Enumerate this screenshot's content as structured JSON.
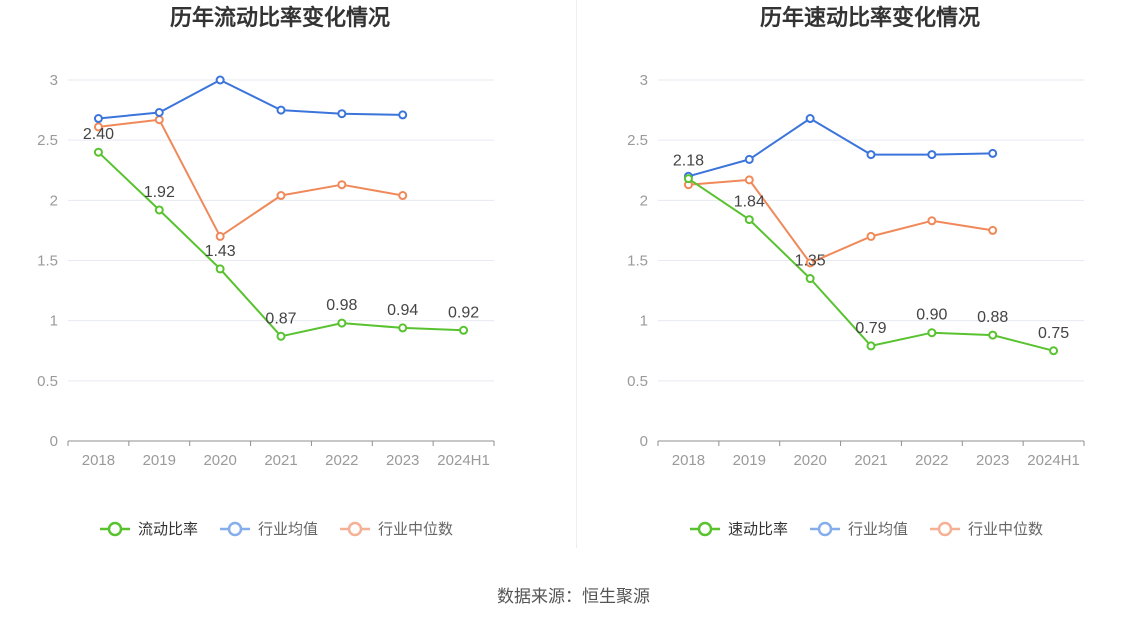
{
  "chart_data": [
    {
      "type": "line",
      "title": "历年流动比率变化情况",
      "categories": [
        "2018",
        "2019",
        "2020",
        "2021",
        "2022",
        "2023",
        "2024H1"
      ],
      "ylim": [
        0,
        3
      ],
      "yticks": [
        0,
        0.5,
        1,
        1.5,
        2,
        2.5,
        3
      ],
      "grid": true,
      "legend": "bottom",
      "series": [
        {
          "name": "流动比率",
          "color": "#58c22f",
          "legend_color": "#58c22f",
          "values": [
            2.4,
            1.92,
            1.43,
            0.87,
            0.98,
            0.94,
            0.92
          ],
          "labels": [
            "2.40",
            "1.92",
            "1.43",
            "0.87",
            "0.98",
            "0.94",
            "0.92"
          ]
        },
        {
          "name": "行业均值",
          "color": "#3b74db",
          "legend_color": "#86aeec",
          "values": [
            2.68,
            2.73,
            3.0,
            2.75,
            2.72,
            2.71,
            null
          ]
        },
        {
          "name": "行业中位数",
          "color": "#f0895a",
          "legend_color": "#f4b195",
          "values": [
            2.61,
            2.67,
            1.7,
            2.04,
            2.13,
            2.04,
            null
          ]
        }
      ]
    },
    {
      "type": "line",
      "title": "历年速动比率变化情况",
      "categories": [
        "2018",
        "2019",
        "2020",
        "2021",
        "2022",
        "2023",
        "2024H1"
      ],
      "ylim": [
        0,
        3
      ],
      "yticks": [
        0,
        0.5,
        1,
        1.5,
        2,
        2.5,
        3
      ],
      "grid": true,
      "legend": "bottom",
      "series": [
        {
          "name": "速动比率",
          "color": "#58c22f",
          "legend_color": "#58c22f",
          "values": [
            2.18,
            1.84,
            1.35,
            0.79,
            0.9,
            0.88,
            0.75
          ],
          "labels": [
            "2.18",
            "1.84",
            "1.35",
            "0.79",
            "0.90",
            "0.88",
            "0.75"
          ]
        },
        {
          "name": "行业均值",
          "color": "#3b74db",
          "legend_color": "#86aeec",
          "values": [
            2.2,
            2.34,
            2.68,
            2.38,
            2.38,
            2.39,
            null
          ]
        },
        {
          "name": "行业中位数",
          "color": "#f0895a",
          "legend_color": "#f4b195",
          "values": [
            2.13,
            2.17,
            1.48,
            1.7,
            1.83,
            1.75,
            null
          ]
        }
      ]
    }
  ],
  "footer": {
    "source": "数据来源：恒生聚源"
  }
}
